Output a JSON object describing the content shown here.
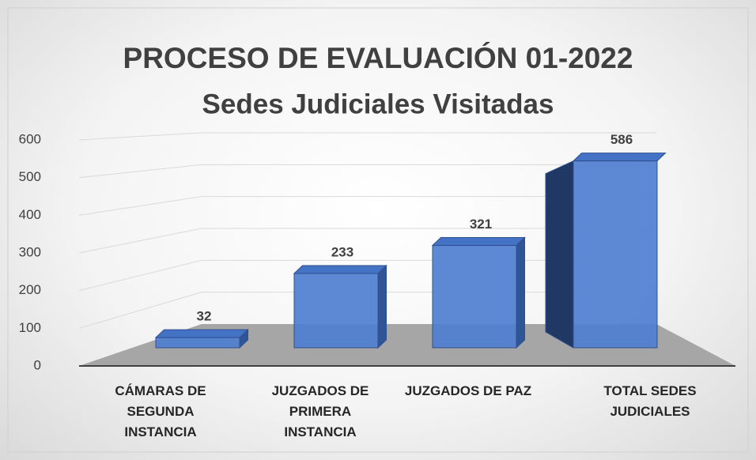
{
  "chart_data": {
    "type": "bar",
    "title": "PROCESO DE EVALUACIÓN 01-2022",
    "subtitle": "Sedes Judiciales Visitadas",
    "categories": [
      "CÁMARAS DE SEGUNDA INSTANCIA",
      "JUZGADOS DE PRIMERA INSTANCIA",
      "JUZGADOS DE PAZ",
      "TOTAL SEDES JUDICIALES"
    ],
    "values": [
      32,
      233,
      321,
      586
    ],
    "color": "#4f7fd0",
    "ylim": [
      0,
      600
    ],
    "yticks": [
      0,
      100,
      200,
      300,
      400,
      500,
      600
    ],
    "grid": true
  }
}
